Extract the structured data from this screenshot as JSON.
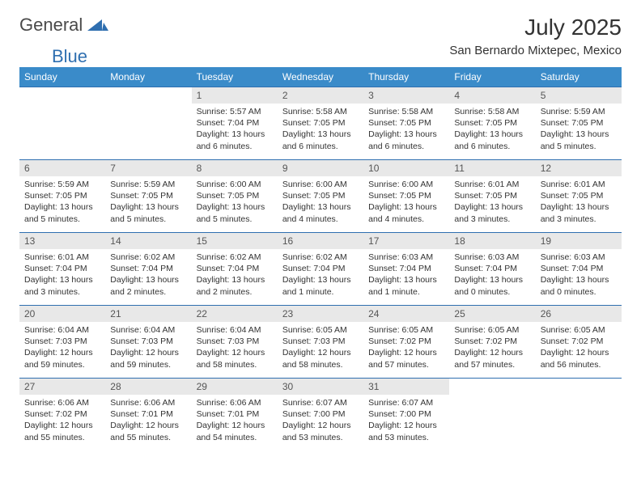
{
  "brand": {
    "part1": "General",
    "part2": "Blue"
  },
  "title": "July 2025",
  "location": "San Bernardo Mixtepec, Mexico",
  "colors": {
    "header_bg": "#3a8bc9",
    "header_fg": "#ffffff",
    "daynum_bg": "#e8e8e8",
    "daynum_fg": "#555555",
    "body_fg": "#333333",
    "rule": "#2f6fb0",
    "brand_gray": "#4a4a4a",
    "brand_blue": "#2f6fb0"
  },
  "weekdays": [
    "Sunday",
    "Monday",
    "Tuesday",
    "Wednesday",
    "Thursday",
    "Friday",
    "Saturday"
  ],
  "weeks": [
    [
      {
        "n": "",
        "sr": "",
        "ss": "",
        "dl": ""
      },
      {
        "n": "",
        "sr": "",
        "ss": "",
        "dl": ""
      },
      {
        "n": "1",
        "sr": "5:57 AM",
        "ss": "7:04 PM",
        "dl": "13 hours and 6 minutes."
      },
      {
        "n": "2",
        "sr": "5:58 AM",
        "ss": "7:05 PM",
        "dl": "13 hours and 6 minutes."
      },
      {
        "n": "3",
        "sr": "5:58 AM",
        "ss": "7:05 PM",
        "dl": "13 hours and 6 minutes."
      },
      {
        "n": "4",
        "sr": "5:58 AM",
        "ss": "7:05 PM",
        "dl": "13 hours and 6 minutes."
      },
      {
        "n": "5",
        "sr": "5:59 AM",
        "ss": "7:05 PM",
        "dl": "13 hours and 5 minutes."
      }
    ],
    [
      {
        "n": "6",
        "sr": "5:59 AM",
        "ss": "7:05 PM",
        "dl": "13 hours and 5 minutes."
      },
      {
        "n": "7",
        "sr": "5:59 AM",
        "ss": "7:05 PM",
        "dl": "13 hours and 5 minutes."
      },
      {
        "n": "8",
        "sr": "6:00 AM",
        "ss": "7:05 PM",
        "dl": "13 hours and 5 minutes."
      },
      {
        "n": "9",
        "sr": "6:00 AM",
        "ss": "7:05 PM",
        "dl": "13 hours and 4 minutes."
      },
      {
        "n": "10",
        "sr": "6:00 AM",
        "ss": "7:05 PM",
        "dl": "13 hours and 4 minutes."
      },
      {
        "n": "11",
        "sr": "6:01 AM",
        "ss": "7:05 PM",
        "dl": "13 hours and 3 minutes."
      },
      {
        "n": "12",
        "sr": "6:01 AM",
        "ss": "7:05 PM",
        "dl": "13 hours and 3 minutes."
      }
    ],
    [
      {
        "n": "13",
        "sr": "6:01 AM",
        "ss": "7:04 PM",
        "dl": "13 hours and 3 minutes."
      },
      {
        "n": "14",
        "sr": "6:02 AM",
        "ss": "7:04 PM",
        "dl": "13 hours and 2 minutes."
      },
      {
        "n": "15",
        "sr": "6:02 AM",
        "ss": "7:04 PM",
        "dl": "13 hours and 2 minutes."
      },
      {
        "n": "16",
        "sr": "6:02 AM",
        "ss": "7:04 PM",
        "dl": "13 hours and 1 minute."
      },
      {
        "n": "17",
        "sr": "6:03 AM",
        "ss": "7:04 PM",
        "dl": "13 hours and 1 minute."
      },
      {
        "n": "18",
        "sr": "6:03 AM",
        "ss": "7:04 PM",
        "dl": "13 hours and 0 minutes."
      },
      {
        "n": "19",
        "sr": "6:03 AM",
        "ss": "7:04 PM",
        "dl": "13 hours and 0 minutes."
      }
    ],
    [
      {
        "n": "20",
        "sr": "6:04 AM",
        "ss": "7:03 PM",
        "dl": "12 hours and 59 minutes."
      },
      {
        "n": "21",
        "sr": "6:04 AM",
        "ss": "7:03 PM",
        "dl": "12 hours and 59 minutes."
      },
      {
        "n": "22",
        "sr": "6:04 AM",
        "ss": "7:03 PM",
        "dl": "12 hours and 58 minutes."
      },
      {
        "n": "23",
        "sr": "6:05 AM",
        "ss": "7:03 PM",
        "dl": "12 hours and 58 minutes."
      },
      {
        "n": "24",
        "sr": "6:05 AM",
        "ss": "7:02 PM",
        "dl": "12 hours and 57 minutes."
      },
      {
        "n": "25",
        "sr": "6:05 AM",
        "ss": "7:02 PM",
        "dl": "12 hours and 57 minutes."
      },
      {
        "n": "26",
        "sr": "6:05 AM",
        "ss": "7:02 PM",
        "dl": "12 hours and 56 minutes."
      }
    ],
    [
      {
        "n": "27",
        "sr": "6:06 AM",
        "ss": "7:02 PM",
        "dl": "12 hours and 55 minutes."
      },
      {
        "n": "28",
        "sr": "6:06 AM",
        "ss": "7:01 PM",
        "dl": "12 hours and 55 minutes."
      },
      {
        "n": "29",
        "sr": "6:06 AM",
        "ss": "7:01 PM",
        "dl": "12 hours and 54 minutes."
      },
      {
        "n": "30",
        "sr": "6:07 AM",
        "ss": "7:00 PM",
        "dl": "12 hours and 53 minutes."
      },
      {
        "n": "31",
        "sr": "6:07 AM",
        "ss": "7:00 PM",
        "dl": "12 hours and 53 minutes."
      },
      {
        "n": "",
        "sr": "",
        "ss": "",
        "dl": ""
      },
      {
        "n": "",
        "sr": "",
        "ss": "",
        "dl": ""
      }
    ]
  ],
  "labels": {
    "sunrise": "Sunrise:",
    "sunset": "Sunset:",
    "daylight": "Daylight:"
  }
}
